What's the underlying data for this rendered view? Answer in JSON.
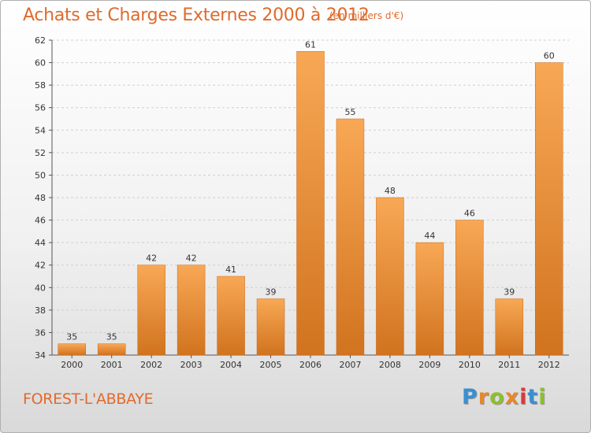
{
  "header": {
    "title": "Achats et Charges Externes 2000 à 2012",
    "unit": "(en milliers d'€)"
  },
  "footer": {
    "commune": "FOREST-L'ABBAYE",
    "brand_letters": [
      {
        "char": "P",
        "color": "#3a8fd1"
      },
      {
        "char": "r",
        "color": "#e8872a"
      },
      {
        "char": "o",
        "color": "#8dbf2e"
      },
      {
        "char": "x",
        "color": "#e8872a"
      },
      {
        "char": "i",
        "color": "#d93a3a"
      },
      {
        "char": "t",
        "color": "#3a8fd1"
      },
      {
        "char": "i",
        "color": "#8dbf2e"
      }
    ]
  },
  "colors": {
    "bar_top": "#f8a855",
    "bar_bottom": "#d1731f",
    "accent": "#e06a2c"
  },
  "chart_data": {
    "type": "bar",
    "title": "Achats et Charges Externes 2000 à 2012",
    "subtitle": "(en milliers d'€)",
    "categories": [
      "2000",
      "2001",
      "2002",
      "2003",
      "2004",
      "2005",
      "2006",
      "2007",
      "2008",
      "2009",
      "2010",
      "2011",
      "2012"
    ],
    "values": [
      35,
      35,
      42,
      42,
      41,
      39,
      61,
      55,
      48,
      44,
      46,
      39,
      60
    ],
    "ylim": [
      34,
      62
    ],
    "yticks": [
      34,
      36,
      38,
      40,
      42,
      44,
      46,
      48,
      50,
      52,
      54,
      56,
      58,
      60,
      62
    ],
    "grid": true,
    "xlabel": "",
    "ylabel": ""
  }
}
